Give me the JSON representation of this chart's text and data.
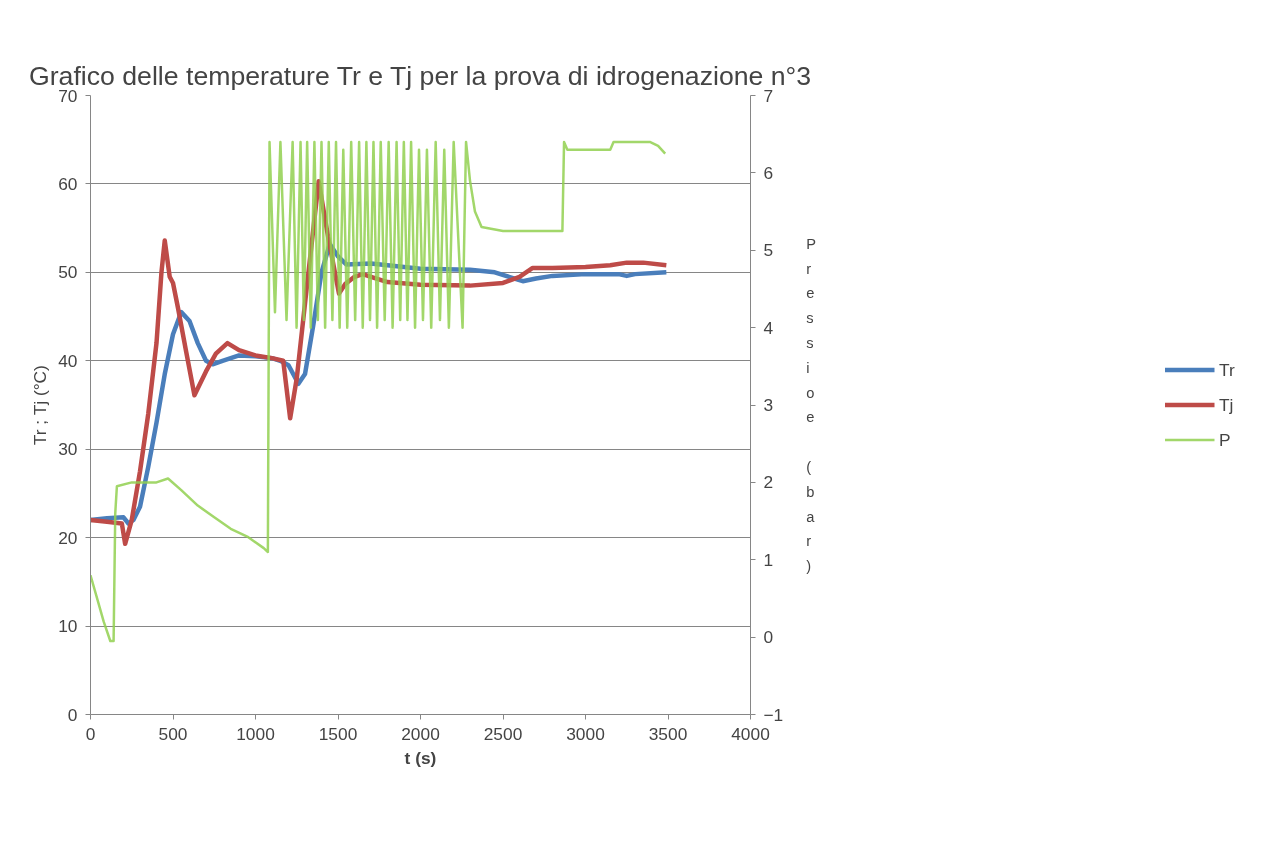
{
  "chart_data": {
    "type": "line",
    "title": "Grafico delle temperature Tr e Tj per la prova di idrogenazione n°3",
    "xlabel": "t (s)",
    "ylabel": "Tr ; Tj (°C)",
    "y2label": "Pressioe (bar)",
    "xlim": [
      0,
      4000
    ],
    "xticks": [
      0,
      500,
      1000,
      1500,
      2000,
      2500,
      3000,
      3500,
      4000
    ],
    "ylim": [
      0,
      70
    ],
    "yticks": [
      0,
      10,
      20,
      30,
      40,
      50,
      60,
      70
    ],
    "y2lim": [
      -1,
      7
    ],
    "y2ticks": [
      -1,
      0,
      1,
      2,
      3,
      4,
      5,
      6,
      7
    ],
    "grid": "y",
    "legend": "right",
    "line_style": "solid",
    "series": [
      {
        "name": "Tr",
        "color": "#4a7ebb",
        "x": [
          0,
          100,
          200,
          230,
          260,
          300,
          350,
          400,
          450,
          500,
          550,
          600,
          650,
          700,
          740,
          800,
          900,
          1000,
          1100,
          1150,
          1200,
          1260,
          1300,
          1350,
          1400,
          1450,
          1500,
          1550,
          1700,
          2000,
          2300,
          2450,
          2620,
          2700,
          2800,
          3000,
          3200,
          3250,
          3300,
          3490
        ],
        "values": [
          22,
          22.2,
          22.3,
          21.6,
          22,
          23.5,
          28,
          33,
          38.5,
          43,
          45.5,
          44.5,
          42,
          40,
          39.6,
          40,
          40.6,
          40.5,
          40.3,
          40,
          39.5,
          37.4,
          38.5,
          44,
          50,
          53.2,
          51.8,
          50.9,
          51,
          50.4,
          50.3,
          50,
          49,
          49.3,
          49.6,
          49.8,
          49.8,
          49.6,
          49.8,
          50
        ]
      },
      {
        "name": "Tj",
        "color": "#be4b48",
        "x": [
          0,
          100,
          190,
          210,
          250,
          300,
          350,
          400,
          430,
          450,
          480,
          500,
          530,
          580,
          630,
          700,
          760,
          830,
          900,
          1000,
          1100,
          1168,
          1210,
          1250,
          1303,
          1383,
          1440,
          1506,
          1545,
          1600,
          1650,
          1700,
          1800,
          2000,
          2300,
          2500,
          2600,
          2680,
          2800,
          3000,
          3150,
          3250,
          3350,
          3490
        ],
        "values": [
          22,
          21.8,
          21.6,
          19.3,
          22,
          27.5,
          34,
          42,
          50,
          53.6,
          49.5,
          48.8,
          46,
          41,
          36.1,
          38.8,
          40.8,
          42,
          41.2,
          40.6,
          40.3,
          40,
          33.5,
          38,
          47,
          60.3,
          54,
          47.6,
          48.7,
          49.5,
          49.8,
          49.5,
          48.9,
          48.6,
          48.5,
          48.8,
          49.5,
          50.5,
          50.5,
          50.6,
          50.8,
          51.1,
          51.1,
          50.8
        ]
      },
      {
        "name": "P",
        "color": "#92d050",
        "axis": "y2",
        "x": [
          0,
          40,
          80,
          120,
          140,
          150,
          160,
          250,
          400,
          470,
          550,
          650,
          750,
          850,
          950,
          1050,
          1075,
          1085,
          1118,
          1151,
          1188,
          1225,
          1249,
          1273,
          1293,
          1313,
          1335,
          1357,
          1378,
          1400,
          1422,
          1444,
          1466,
          1488,
          1510,
          1532,
          1556,
          1580,
          1604,
          1628,
          1650,
          1672,
          1694,
          1715,
          1737,
          1759,
          1783,
          1807,
          1831,
          1855,
          1877,
          1899,
          1921,
          1943,
          1967,
          1991,
          2015,
          2039,
          2065,
          2092,
          2118,
          2144,
          2172,
          2201,
          2255,
          2276,
          2300,
          2330,
          2370,
          2500,
          2860,
          2870,
          2890,
          3150,
          3170,
          3390,
          3440,
          3483
        ],
        "values": [
          0.8,
          0.5,
          0.2,
          -0.05,
          -0.05,
          1.6,
          1.95,
          2.0,
          2.0,
          2.05,
          1.9,
          1.7,
          1.55,
          1.4,
          1.3,
          1.15,
          1.1,
          6.4,
          4.2,
          6.4,
          4.1,
          6.4,
          4.0,
          6.4,
          4.1,
          6.4,
          4.0,
          6.4,
          4.1,
          6.4,
          4.0,
          6.4,
          4.1,
          6.4,
          4.0,
          6.3,
          4.0,
          6.4,
          4.1,
          6.4,
          4.0,
          6.4,
          4.1,
          6.4,
          4.0,
          6.4,
          4.1,
          6.4,
          4.0,
          6.4,
          4.1,
          6.4,
          4.1,
          6.4,
          4.0,
          6.3,
          4.1,
          6.3,
          4.0,
          6.4,
          4.1,
          6.3,
          4.0,
          6.4,
          4.0,
          6.4,
          5.9,
          5.5,
          5.3,
          5.25,
          5.25,
          6.4,
          6.3,
          6.3,
          6.4,
          6.4,
          6.35,
          6.25
        ]
      }
    ]
  }
}
